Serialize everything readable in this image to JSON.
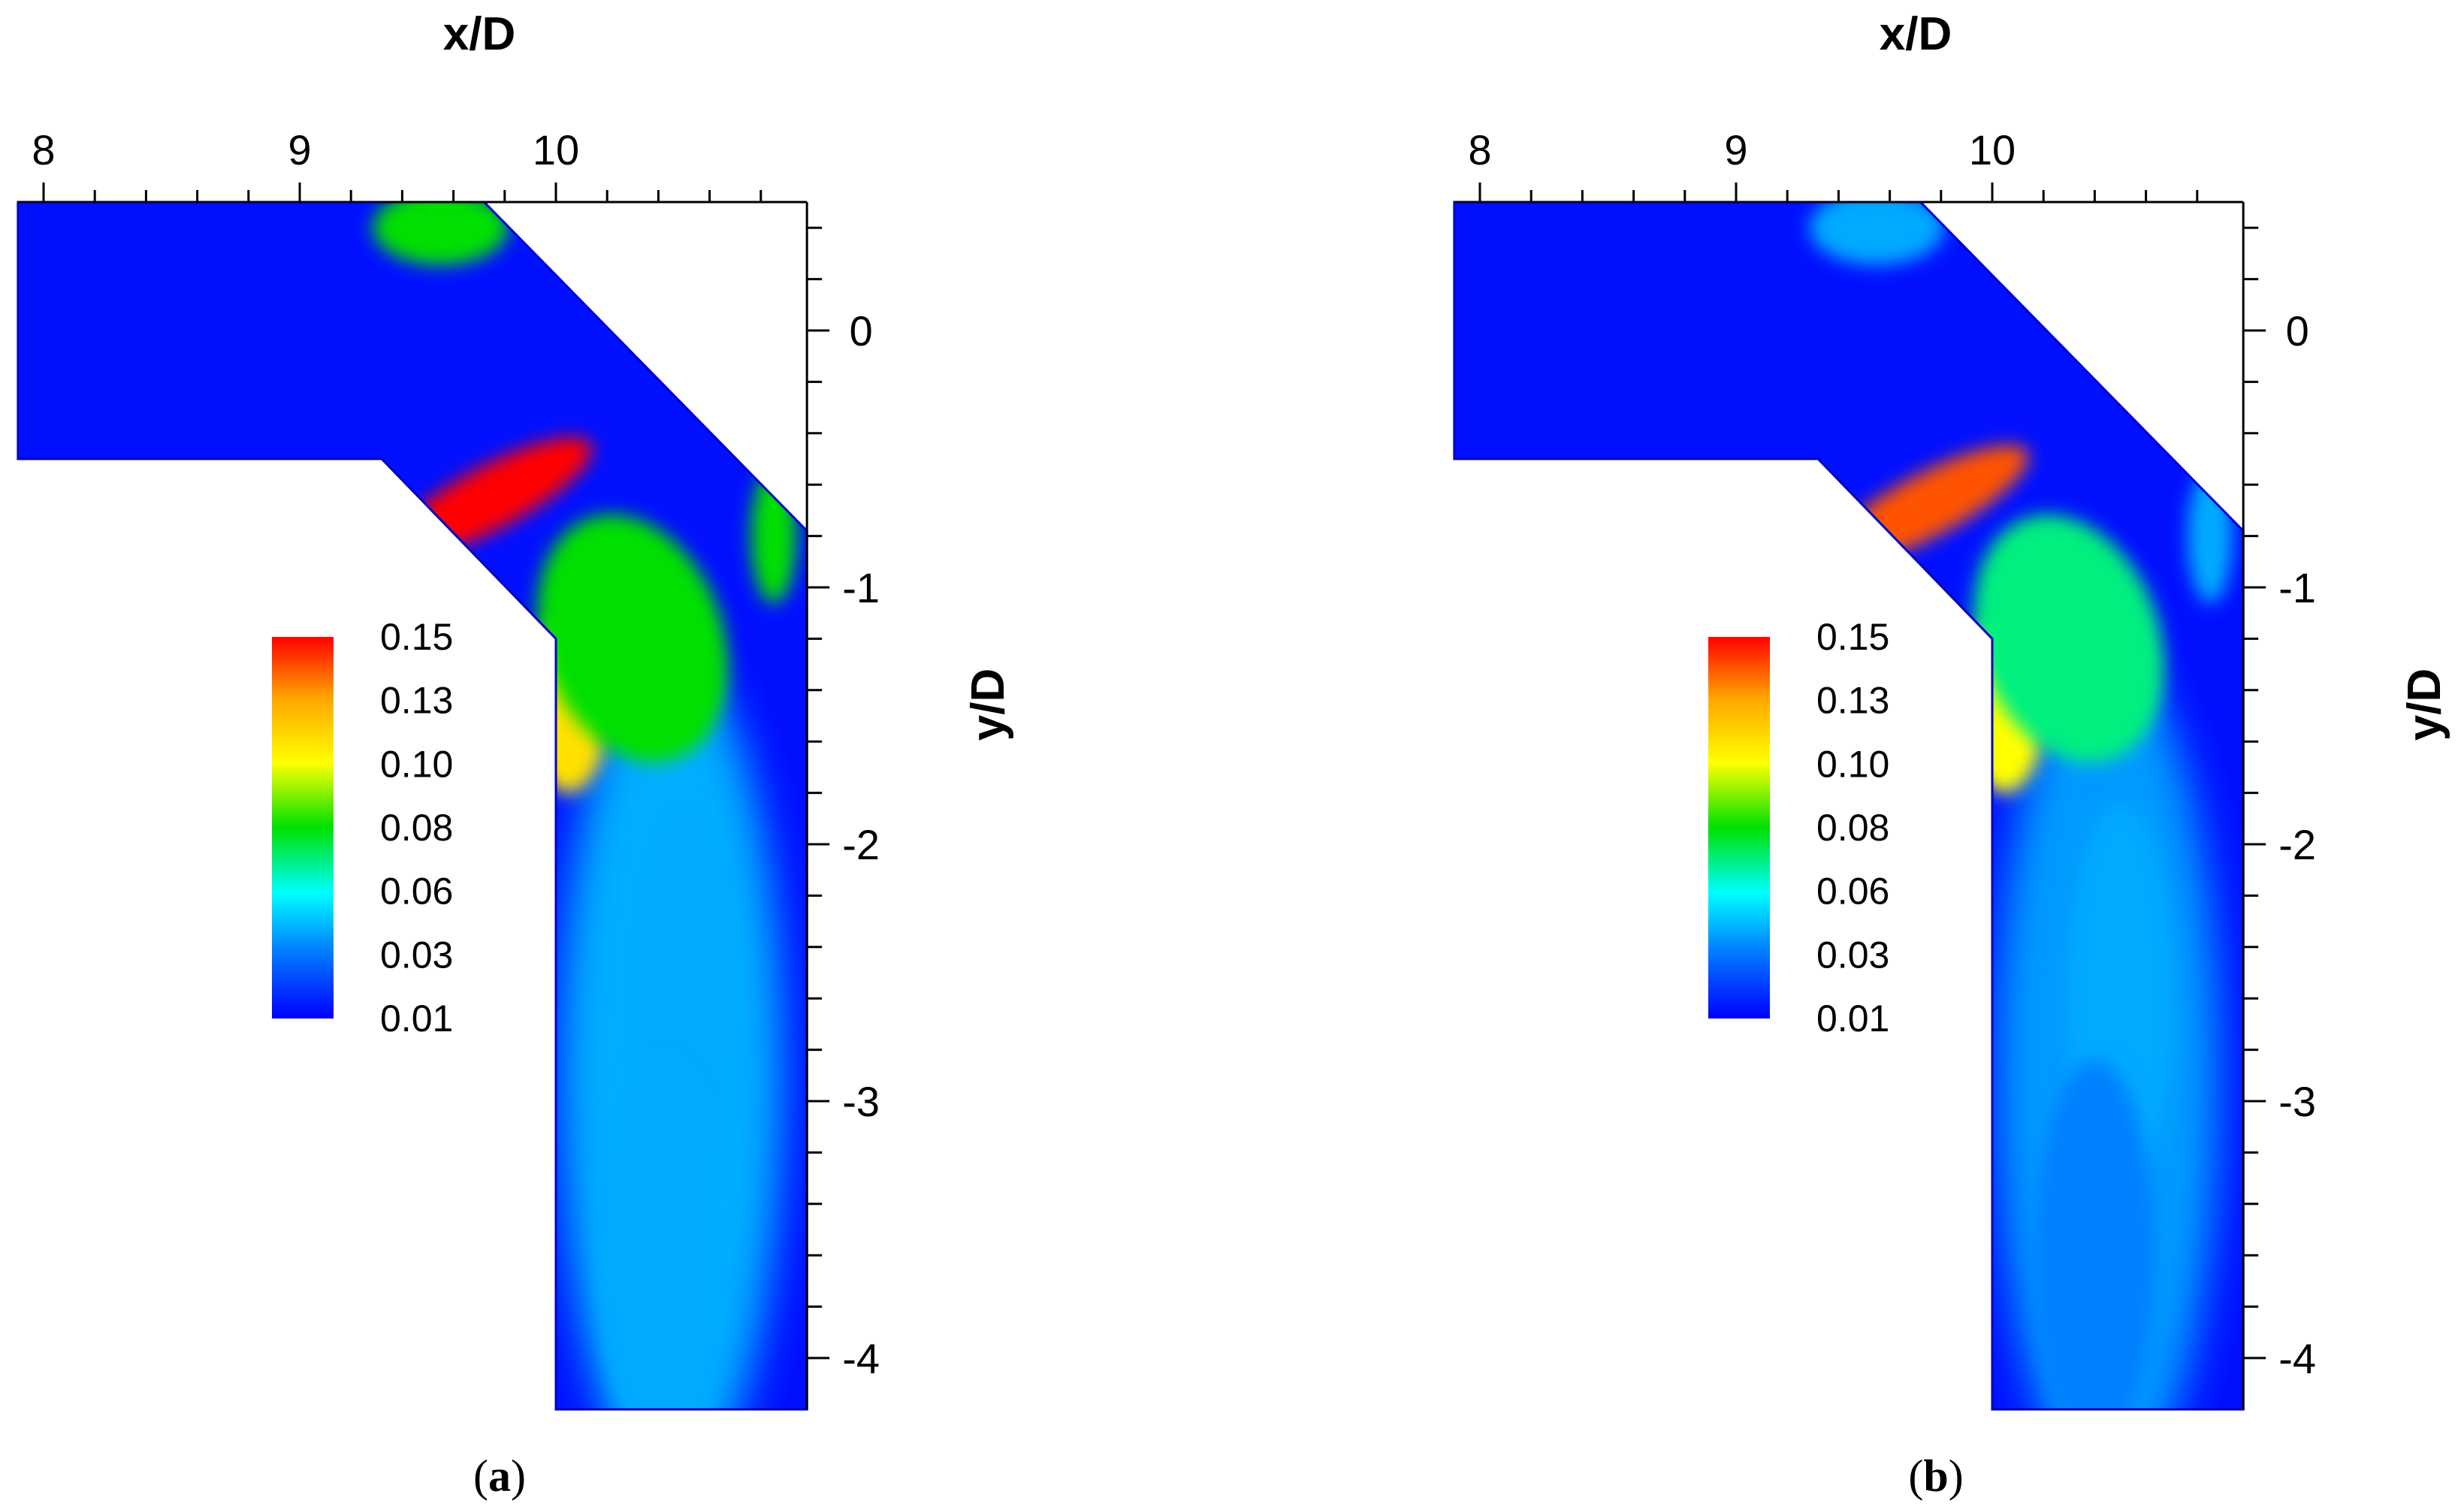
{
  "chart_data": [
    {
      "type": "heatmap",
      "panel_label": "a",
      "xlabel": "x/D",
      "ylabel": "y/D",
      "xlim": [
        7.9,
        10.98
      ],
      "ylim": [
        -4.2,
        0.5
      ],
      "xticks": [
        8,
        9,
        10
      ],
      "yticks": [
        0,
        -1,
        -2,
        -3,
        -4
      ],
      "colorbar": {
        "labels": [
          "0.15",
          "0.13",
          "0.10",
          "0.08",
          "0.06",
          "0.03",
          "0.01"
        ],
        "colors": [
          "#ff0000",
          "#ffa500",
          "#ffff00",
          "#00e000",
          "#00ffff",
          "#0000ff"
        ]
      },
      "hotspots": [
        {
          "x": 9.75,
          "y": -0.65,
          "value": 0.15
        },
        {
          "x": 10.05,
          "y": -1.45,
          "value": 0.11
        },
        {
          "x": 10.3,
          "y": -1.2,
          "value": 0.08
        },
        {
          "x": 9.55,
          "y": 0.4,
          "value": 0.08
        },
        {
          "x": 10.85,
          "y": -0.8,
          "value": 0.08
        },
        {
          "x": 10.5,
          "y": -2.6,
          "value": 0.04
        },
        {
          "x": 10.4,
          "y": -3.6,
          "value": 0.04
        }
      ]
    },
    {
      "type": "heatmap",
      "panel_label": "b",
      "xlabel": "x/D",
      "ylabel": "y/D",
      "xlim": [
        7.9,
        10.98
      ],
      "ylim": [
        -4.2,
        0.5
      ],
      "xticks": [
        8,
        9,
        10
      ],
      "yticks": [
        0,
        -1,
        -2,
        -3,
        -4
      ],
      "colorbar": {
        "labels": [
          "0.15",
          "0.13",
          "0.10",
          "0.08",
          "0.06",
          "0.03",
          "0.01"
        ],
        "colors": [
          "#ff0000",
          "#ffa500",
          "#ffff00",
          "#00e000",
          "#00ffff",
          "#0000ff"
        ]
      },
      "hotspots": [
        {
          "x": 9.75,
          "y": -0.68,
          "value": 0.14
        },
        {
          "x": 10.05,
          "y": -1.45,
          "value": 0.1
        },
        {
          "x": 10.3,
          "y": -1.2,
          "value": 0.07
        },
        {
          "x": 9.55,
          "y": 0.4,
          "value": 0.04
        },
        {
          "x": 10.85,
          "y": -0.8,
          "value": 0.04
        },
        {
          "x": 10.5,
          "y": -2.6,
          "value": 0.04
        },
        {
          "x": 10.4,
          "y": -3.6,
          "value": 0.03
        }
      ]
    }
  ]
}
